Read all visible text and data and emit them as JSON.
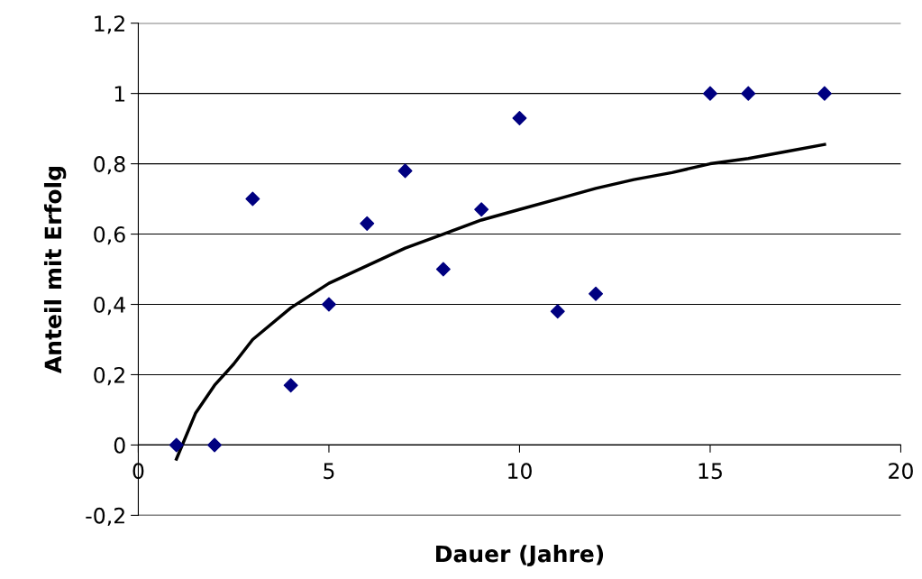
{
  "chart_data": {
    "type": "scatter",
    "xlabel": "Dauer (Jahre)",
    "ylabel": "Anteil mit Erfolg",
    "series": [
      {
        "color": "#000080",
        "marker": "diamond",
        "x": [
          1,
          2,
          3,
          4,
          5,
          6,
          7,
          8,
          9,
          10,
          11,
          12,
          15,
          16,
          18
        ],
        "values": [
          0,
          0,
          0.7,
          0.17,
          0.4,
          0.63,
          0.78,
          0.5,
          0.67,
          0.93,
          0.38,
          0.43,
          1,
          1,
          1
        ]
      },
      {
        "type": "line",
        "color": "#000000",
        "marker": "none",
        "line_style": "solid",
        "x": [
          1,
          1.5,
          2,
          2.5,
          3,
          4,
          5,
          6,
          7,
          8,
          9,
          10,
          11,
          12,
          13,
          14,
          15,
          16,
          17,
          18
        ],
        "values": [
          -0.04,
          0.09,
          0.17,
          0.23,
          0.3,
          0.39,
          0.46,
          0.51,
          0.56,
          0.6,
          0.64,
          0.67,
          0.7,
          0.73,
          0.755,
          0.775,
          0.8,
          0.815,
          0.835,
          0.855
        ]
      }
    ],
    "xlim": [
      0,
      20
    ],
    "xticks": [
      0,
      5,
      10,
      15,
      20
    ],
    "ylim": [
      -0.2,
      1.2
    ],
    "yticks": [
      {
        "value": -0.2,
        "label": "-0,2"
      },
      0,
      {
        "value": 0.2,
        "label": "0,2"
      },
      {
        "value": 0.4,
        "label": "0,4"
      },
      {
        "value": 0.6,
        "label": "0,6"
      },
      {
        "value": 0.8,
        "label": "0,8"
      },
      1,
      {
        "value": 1.2,
        "label": "1,2"
      }
    ],
    "grid": "y",
    "legend": false
  }
}
